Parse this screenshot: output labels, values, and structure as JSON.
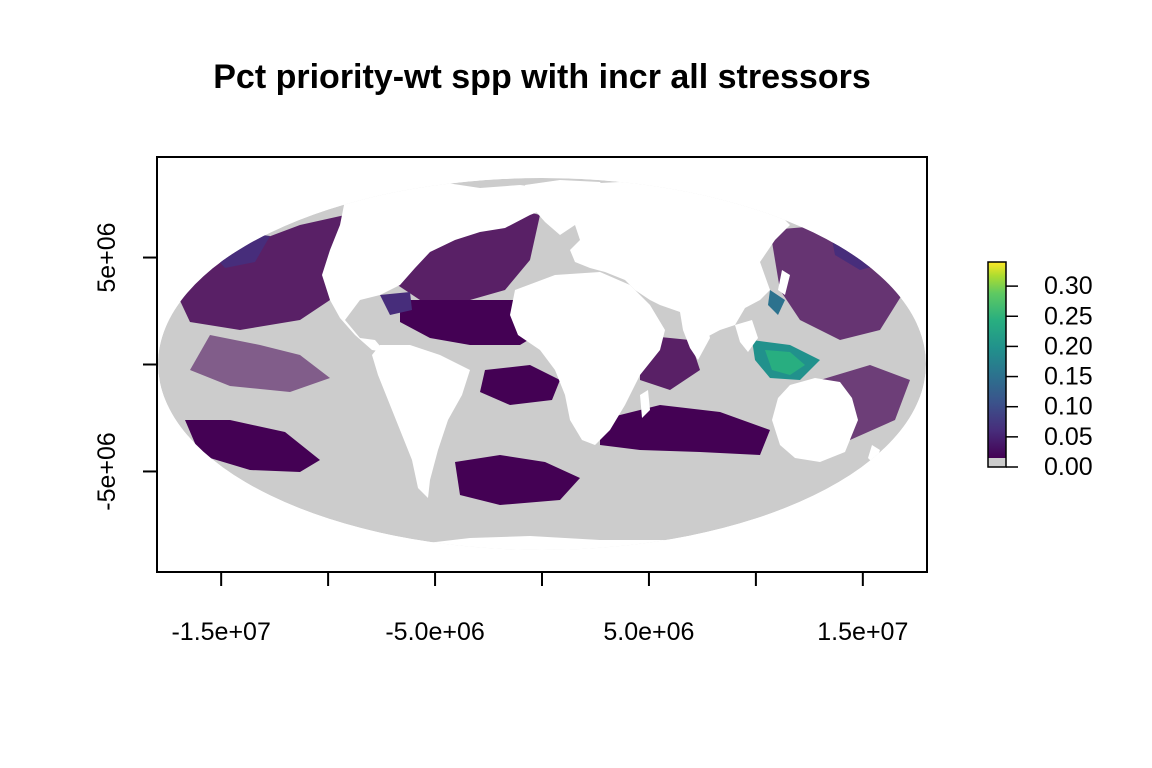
{
  "chart_data": {
    "type": "heatmap",
    "title": "Pct priority-wt spp with incr all stressors",
    "projection": "mollweide",
    "x_axis": {
      "ticks": [
        -15000000,
        -10000000,
        -5000000,
        0,
        5000000,
        10000000,
        15000000
      ],
      "tick_labels": [
        "-1.5e+07",
        "",
        "-5.0e+06",
        "",
        "5.0e+06",
        "",
        "1.5e+07"
      ],
      "range": [
        -18000000,
        18000000
      ]
    },
    "y_axis": {
      "ticks": [
        5000000,
        0,
        -5000000
      ],
      "tick_labels": [
        "5e+06",
        "",
        "-5e+06"
      ],
      "range": [
        -9700000,
        9700000
      ]
    },
    "legend": {
      "placement": "right",
      "range": [
        0,
        0.34
      ],
      "tick_values": [
        0.0,
        0.05,
        0.1,
        0.15,
        0.2,
        0.25,
        0.3
      ],
      "tick_labels": [
        "0.00",
        "0.05",
        "0.10",
        "0.15",
        "0.20",
        "0.25",
        "0.30"
      ],
      "colors": [
        "#cccccc",
        "#440154",
        "#472d7b",
        "#3b528b",
        "#2c728e",
        "#21918c",
        "#28ae80",
        "#5ec962",
        "#addc30",
        "#fde725"
      ]
    },
    "background_fill": "#cccccc",
    "land_fill": "#ffffff"
  }
}
